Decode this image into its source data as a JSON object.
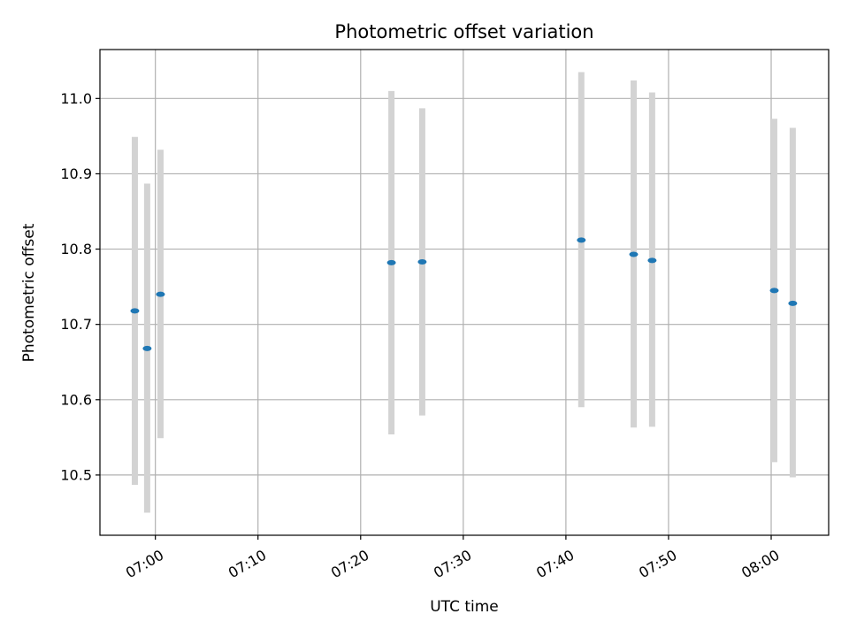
{
  "chart_data": {
    "type": "scatter",
    "title": "Photometric offset variation",
    "xlabel": "UTC time",
    "ylabel": "Photometric offset",
    "x_ticks": [
      "07:00",
      "07:10",
      "07:20",
      "07:30",
      "07:40",
      "07:50",
      "08:00"
    ],
    "y_ticks": [
      "10.5",
      "10.6",
      "10.7",
      "10.8",
      "10.9",
      "11.0"
    ],
    "xlim": [
      "06:54:36",
      "08:05:36"
    ],
    "ylim": [
      10.42,
      11.065
    ],
    "grid": true,
    "colors": {
      "point": "#1f77b4",
      "errorbar": "#d3d3d3",
      "grid": "#b0b0b0",
      "axes": "#000000"
    },
    "points": [
      {
        "time": "06:58:00",
        "y": 10.718,
        "low": 10.487,
        "high": 10.949
      },
      {
        "time": "06:59:12",
        "y": 10.668,
        "low": 10.45,
        "high": 10.887
      },
      {
        "time": "07:00:30",
        "y": 10.74,
        "low": 10.549,
        "high": 10.932
      },
      {
        "time": "07:23:00",
        "y": 10.782,
        "low": 10.554,
        "high": 11.01
      },
      {
        "time": "07:26:00",
        "y": 10.783,
        "low": 10.579,
        "high": 10.987
      },
      {
        "time": "07:41:30",
        "y": 10.812,
        "low": 10.59,
        "high": 11.035
      },
      {
        "time": "07:46:36",
        "y": 10.793,
        "low": 10.563,
        "high": 11.024
      },
      {
        "time": "07:48:24",
        "y": 10.785,
        "low": 10.564,
        "high": 11.008
      },
      {
        "time": "08:00:18",
        "y": 10.745,
        "low": 10.517,
        "high": 10.973
      },
      {
        "time": "08:02:06",
        "y": 10.728,
        "low": 10.497,
        "high": 10.961
      }
    ]
  }
}
